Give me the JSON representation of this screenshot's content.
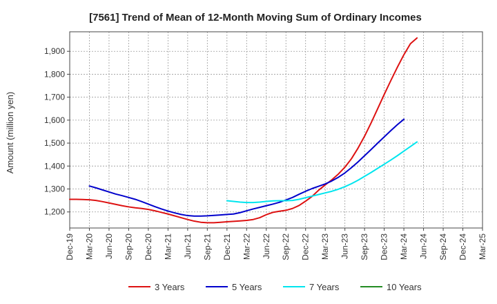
{
  "chart_data": {
    "type": "line",
    "title": "[7561]  Trend of Mean of 12-Month Moving Sum of Ordinary Incomes",
    "xlabel": "",
    "ylabel": "Amount (million yen)",
    "ylim": [
      1130,
      1985
    ],
    "yticks": [
      1200,
      1300,
      1400,
      1500,
      1600,
      1700,
      1800,
      1900
    ],
    "ytick_labels": [
      "1,200",
      "1,300",
      "1,400",
      "1,500",
      "1,600",
      "1,700",
      "1,800",
      "1,900"
    ],
    "x_start": "Dec-19",
    "x_tick_labels": [
      "Dec-19",
      "Mar-20",
      "Jun-20",
      "Sep-20",
      "Dec-20",
      "Mar-21",
      "Jun-21",
      "Sep-21",
      "Dec-21",
      "Mar-22",
      "Jun-22",
      "Sep-22",
      "Dec-22",
      "Mar-23",
      "Jun-23",
      "Sep-23",
      "Dec-23",
      "Mar-24",
      "Jun-24",
      "Sep-24",
      "Dec-24",
      "Mar-25"
    ],
    "grid": true,
    "legend_position": "bottom",
    "series": [
      {
        "name": "3 Years",
        "color": "#dd1111",
        "points": [
          [
            0,
            1255
          ],
          [
            1,
            1255
          ],
          [
            2,
            1254
          ],
          [
            3,
            1253
          ],
          [
            4,
            1250
          ],
          [
            5,
            1245
          ],
          [
            6,
            1239
          ],
          [
            7,
            1233
          ],
          [
            8,
            1227
          ],
          [
            9,
            1222
          ],
          [
            10,
            1218
          ],
          [
            11,
            1215
          ],
          [
            12,
            1211
          ],
          [
            13,
            1205
          ],
          [
            14,
            1198
          ],
          [
            15,
            1191
          ],
          [
            16,
            1183
          ],
          [
            17,
            1175
          ],
          [
            18,
            1167
          ],
          [
            19,
            1160
          ],
          [
            20,
            1155
          ],
          [
            21,
            1153
          ],
          [
            22,
            1153
          ],
          [
            23,
            1155
          ],
          [
            24,
            1157
          ],
          [
            25,
            1159
          ],
          [
            26,
            1161
          ],
          [
            27,
            1163
          ],
          [
            28,
            1167
          ],
          [
            29,
            1175
          ],
          [
            30,
            1188
          ],
          [
            31,
            1198
          ],
          [
            32,
            1203
          ],
          [
            33,
            1207
          ],
          [
            34,
            1215
          ],
          [
            35,
            1228
          ],
          [
            36,
            1247
          ],
          [
            37,
            1268
          ],
          [
            38,
            1295
          ],
          [
            39,
            1318
          ],
          [
            40,
            1340
          ],
          [
            41,
            1365
          ],
          [
            42,
            1395
          ],
          [
            43,
            1432
          ],
          [
            44,
            1478
          ],
          [
            45,
            1530
          ],
          [
            46,
            1588
          ],
          [
            47,
            1650
          ],
          [
            48,
            1712
          ],
          [
            49,
            1772
          ],
          [
            50,
            1830
          ],
          [
            51,
            1885
          ],
          [
            52,
            1933
          ],
          [
            53,
            1958
          ]
        ]
      },
      {
        "name": "5 Years",
        "color": "#0000cc",
        "points": [
          [
            3,
            1313
          ],
          [
            4,
            1305
          ],
          [
            5,
            1296
          ],
          [
            6,
            1287
          ],
          [
            7,
            1278
          ],
          [
            8,
            1271
          ],
          [
            9,
            1263
          ],
          [
            10,
            1255
          ],
          [
            11,
            1245
          ],
          [
            12,
            1234
          ],
          [
            13,
            1223
          ],
          [
            14,
            1213
          ],
          [
            15,
            1204
          ],
          [
            16,
            1196
          ],
          [
            17,
            1189
          ],
          [
            18,
            1184
          ],
          [
            19,
            1182
          ],
          [
            20,
            1182
          ],
          [
            21,
            1183
          ],
          [
            22,
            1185
          ],
          [
            23,
            1187
          ],
          [
            24,
            1189
          ],
          [
            25,
            1191
          ],
          [
            26,
            1197
          ],
          [
            27,
            1205
          ],
          [
            28,
            1213
          ],
          [
            29,
            1220
          ],
          [
            30,
            1227
          ],
          [
            31,
            1234
          ],
          [
            32,
            1242
          ],
          [
            33,
            1252
          ],
          [
            34,
            1263
          ],
          [
            35,
            1277
          ],
          [
            36,
            1290
          ],
          [
            37,
            1302
          ],
          [
            38,
            1312
          ],
          [
            39,
            1322
          ],
          [
            40,
            1335
          ],
          [
            41,
            1351
          ],
          [
            42,
            1370
          ],
          [
            43,
            1393
          ],
          [
            44,
            1418
          ],
          [
            45,
            1445
          ],
          [
            46,
            1472
          ],
          [
            47,
            1500
          ],
          [
            48,
            1527
          ],
          [
            49,
            1554
          ],
          [
            50,
            1580
          ],
          [
            51,
            1604
          ]
        ]
      },
      {
        "name": "7 Years",
        "color": "#00e5ee",
        "points": [
          [
            24,
            1249
          ],
          [
            25,
            1246
          ],
          [
            26,
            1243
          ],
          [
            27,
            1241
          ],
          [
            28,
            1241
          ],
          [
            29,
            1243
          ],
          [
            30,
            1246
          ],
          [
            31,
            1248
          ],
          [
            32,
            1249
          ],
          [
            33,
            1249
          ],
          [
            34,
            1250
          ],
          [
            35,
            1255
          ],
          [
            36,
            1262
          ],
          [
            37,
            1269
          ],
          [
            38,
            1276
          ],
          [
            39,
            1283
          ],
          [
            40,
            1290
          ],
          [
            41,
            1299
          ],
          [
            42,
            1310
          ],
          [
            43,
            1323
          ],
          [
            44,
            1338
          ],
          [
            45,
            1355
          ],
          [
            46,
            1372
          ],
          [
            47,
            1390
          ],
          [
            48,
            1408
          ],
          [
            49,
            1426
          ],
          [
            50,
            1445
          ],
          [
            51,
            1465
          ],
          [
            52,
            1485
          ],
          [
            53,
            1505
          ]
        ]
      },
      {
        "name": "10 Years",
        "color": "#228b22",
        "points": []
      }
    ]
  }
}
